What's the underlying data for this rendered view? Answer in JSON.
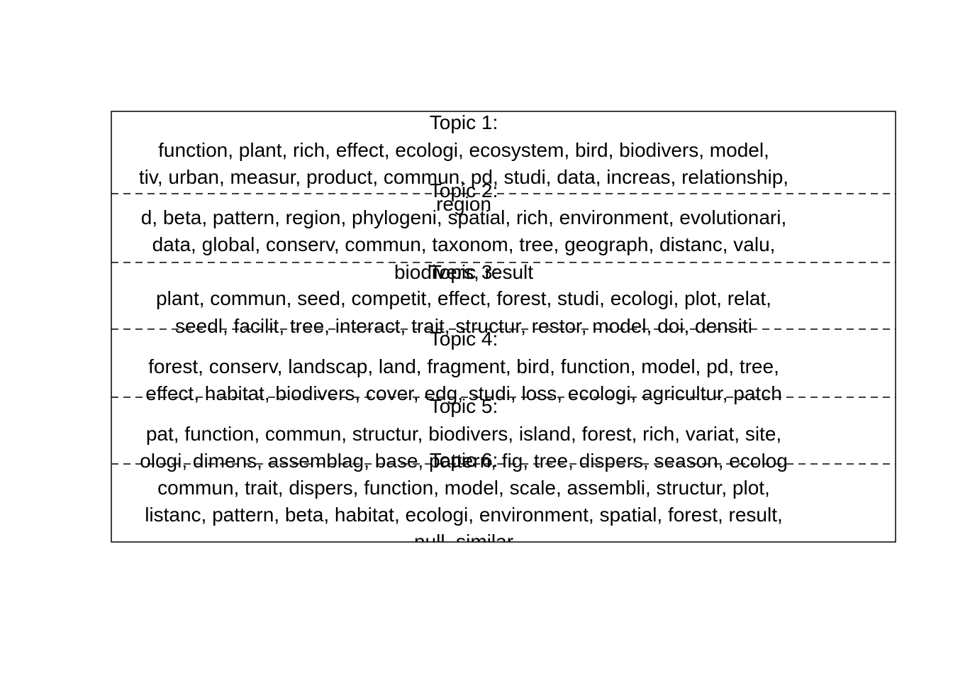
{
  "chart_data": {
    "type": "other",
    "topics": [
      {
        "label": "Topic 1:",
        "lines": [
          "function, plant, rich, effect, ecologi, ecosystem, bird, biodivers, model,",
          "tiv, urban, measur, product, commun, pd, studi, data, increas, relationship,"
        ]
      },
      {
        "label": "Topic 2:",
        "lines": [
          "region",
          "d, beta, pattern, region, phylogeni, spatial, rich, environment, evolutionari,",
          "data, global, conserv, commun, taxonom, tree, geograph, distanc, valu,",
          "biodivers, result"
        ]
      },
      {
        "label": "Topic 3:",
        "lines": [
          "plant, commun, seed, competit, effect, forest, studi, ecologi, plot, relat,",
          "seedl, facilit, tree, interact, trait, structur, restor, model, doi, densiti"
        ]
      },
      {
        "label": "Topic 4:",
        "lines": [
          "forest, conserv, landscap, land, fragment, bird, function, model, pd, tree,",
          "effect, habitat, biodivers, cover, edg, studi, loss, ecologi, agricultur, patch"
        ]
      },
      {
        "label": "Topic 5:",
        "lines": [
          "pat, function, commun, structur, biodivers, island, forest, rich, variat, site,",
          "ologi, dimens, assemblag, base, pattern, fig, tree, dispers, season, ecolog"
        ]
      },
      {
        "label": "Topic 6:",
        "lines": [
          "commun, trait, dispers, function, model, scale, assembli, structur, plot,",
          "listanc, pattern, beta, habitat, ecologi, environment, spatial, forest, result,",
          "null, similar"
        ]
      }
    ]
  }
}
